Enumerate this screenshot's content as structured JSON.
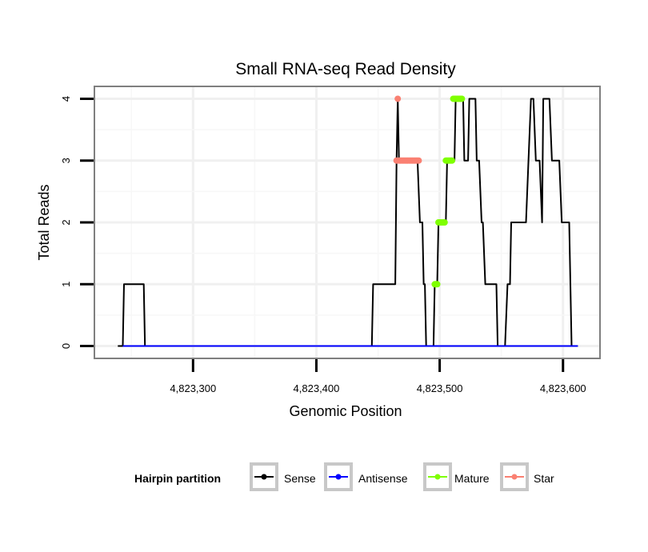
{
  "chart_data": {
    "type": "line",
    "title": "Small RNA-seq Read Density",
    "xlabel": "Genomic Position",
    "ylabel": "Total Reads",
    "xlim": [
      4823220,
      4823630
    ],
    "ylim": [
      -0.2,
      4.2
    ],
    "x_ticks": [
      4823300,
      4823400,
      4823500,
      4823600
    ],
    "x_tick_labels": [
      "4,823,300",
      "4,823,400",
      "4,823,500",
      "4,823,600"
    ],
    "y_ticks": [
      0,
      1,
      2,
      3,
      4
    ],
    "y_tick_labels": [
      "0",
      "1",
      "2",
      "3",
      "4"
    ],
    "grid": true,
    "legend": {
      "title": "Hairpin partition",
      "position": "bottom",
      "entries": [
        {
          "label": "Sense",
          "color": "#000000"
        },
        {
          "label": "Antisense",
          "color": "#0000ff"
        },
        {
          "label": "Mature",
          "color": "#7fff00"
        },
        {
          "label": "Star",
          "color": "#fa8072"
        }
      ]
    },
    "series": [
      {
        "name": "Sense",
        "color": "#000000",
        "kind": "line",
        "x": [
          4823239,
          4823243,
          4823244,
          4823245,
          4823250,
          4823255,
          4823260,
          4823261,
          4823265,
          4823300,
          4823350,
          4823400,
          4823445,
          4823446,
          4823447,
          4823455,
          4823462,
          4823463,
          4823464,
          4823465,
          4823466,
          4823467,
          4823468,
          4823470,
          4823473,
          4823478,
          4823482,
          4823484,
          4823486,
          4823487,
          4823488,
          4823489,
          4823491,
          4823493,
          4823495,
          4823496,
          4823497,
          4823498,
          4823499,
          4823500,
          4823501,
          4823503,
          4823505,
          4823506,
          4823507,
          4823510,
          4823512,
          4823513,
          4823514,
          4823517,
          4823519,
          4823520,
          4823521,
          4823523,
          4823524,
          4823525,
          4823527,
          4823529,
          4823530,
          4823531,
          4823532,
          4823534,
          4823535,
          4823537,
          4823539,
          4823540,
          4823544,
          4823546,
          4823547,
          4823549,
          4823551,
          4823552,
          4823553,
          4823555,
          4823557,
          4823558,
          4823559,
          4823560,
          4823562,
          4823564,
          4823566,
          4823568,
          4823570,
          4823572,
          4823574,
          4823575,
          4823576,
          4823578,
          4823579,
          4823580,
          4823581,
          4823583,
          4823584,
          4823585,
          4823586,
          4823587,
          4823589,
          4823591,
          4823592,
          4823594,
          4823597,
          4823599,
          4823600,
          4823602,
          4823605,
          4823607,
          4823608,
          4823610,
          4823612
        ],
        "y": [
          0,
          0,
          1,
          1,
          1,
          1,
          1,
          0,
          0,
          0,
          0,
          0,
          0,
          1,
          1,
          1,
          1,
          1,
          1,
          3,
          4,
          3,
          3,
          3,
          3,
          3,
          3,
          2,
          2,
          1,
          1,
          0,
          0,
          0,
          0,
          1,
          1,
          1,
          2,
          2,
          2,
          2,
          2,
          3,
          3,
          3,
          3,
          4,
          4,
          4,
          4,
          3,
          3,
          3,
          4,
          4,
          4,
          4,
          3,
          3,
          3,
          2,
          2,
          1,
          1,
          1,
          1,
          1,
          0,
          0,
          0,
          0,
          0,
          1,
          1,
          2,
          2,
          2,
          2,
          2,
          2,
          2,
          2,
          3,
          4,
          4,
          4,
          3,
          3,
          3,
          3,
          2,
          4,
          4,
          4,
          4,
          4,
          3,
          3,
          3,
          3,
          2,
          2,
          2,
          2,
          0,
          0,
          0,
          0
        ]
      },
      {
        "name": "Antisense",
        "color": "#0000ff",
        "kind": "line",
        "x": [
          4823243,
          4823612
        ],
        "y": [
          0,
          0
        ]
      },
      {
        "name": "Mature",
        "color": "#7fff00",
        "kind": "points",
        "x": [
          4823496,
          4823497,
          4823498,
          4823499,
          4823500,
          4823501,
          4823502,
          4823503,
          4823504,
          4823505,
          4823506,
          4823507,
          4823508,
          4823509,
          4823510,
          4823511,
          4823512,
          4823513,
          4823514,
          4823515,
          4823516,
          4823517,
          4823518
        ],
        "y": [
          1,
          1,
          1,
          2,
          2,
          2,
          2,
          2,
          2,
          3,
          3,
          3,
          3,
          3,
          3,
          4,
          4,
          4,
          4,
          4,
          4,
          4,
          4
        ]
      },
      {
        "name": "Star",
        "color": "#fa8072",
        "kind": "points",
        "x": [
          4823466,
          4823465,
          4823467,
          4823468,
          4823469,
          4823470,
          4823471,
          4823472,
          4823473,
          4823474,
          4823475,
          4823476,
          4823477,
          4823478,
          4823479,
          4823480,
          4823481,
          4823482,
          4823483
        ],
        "y": [
          4,
          3,
          3,
          3,
          3,
          3,
          3,
          3,
          3,
          3,
          3,
          3,
          3,
          3,
          3,
          3,
          3,
          3,
          3
        ]
      }
    ]
  }
}
